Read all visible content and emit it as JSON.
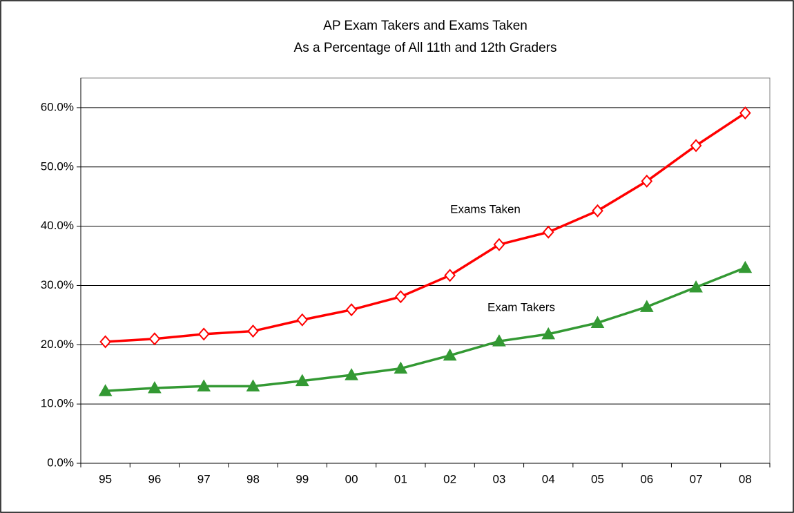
{
  "chart_data": {
    "type": "line",
    "title": [
      "AP Exam Takers and Exams Taken",
      "As a Percentage of All 11th and 12th Graders"
    ],
    "categories": [
      "95",
      "96",
      "97",
      "98",
      "99",
      "00",
      "01",
      "02",
      "03",
      "04",
      "05",
      "06",
      "07",
      "08"
    ],
    "series": [
      {
        "name": "Exams Taken",
        "color": "#ff0000",
        "marker": "diamond",
        "values": [
          20.5,
          21.0,
          21.8,
          22.3,
          24.2,
          25.9,
          28.1,
          31.7,
          36.9,
          39.0,
          42.6,
          47.6,
          53.6,
          59.1
        ]
      },
      {
        "name": "Exam Takers",
        "color": "#339933",
        "marker": "triangle",
        "values": [
          12.2,
          12.7,
          13.0,
          13.0,
          13.9,
          14.9,
          16.0,
          18.2,
          20.6,
          21.8,
          23.7,
          26.4,
          29.7,
          33.0
        ]
      }
    ],
    "ylim": [
      0,
      65
    ],
    "yticks": [
      {
        "value": 0,
        "label": "0.0%"
      },
      {
        "value": 10,
        "label": "10.0%"
      },
      {
        "value": 20,
        "label": "20.0%"
      },
      {
        "value": 30,
        "label": "30.0%"
      },
      {
        "value": 40,
        "label": "40.0%"
      },
      {
        "value": 50,
        "label": "50.0%"
      },
      {
        "value": 60,
        "label": "60.0%"
      }
    ],
    "grid": true
  }
}
